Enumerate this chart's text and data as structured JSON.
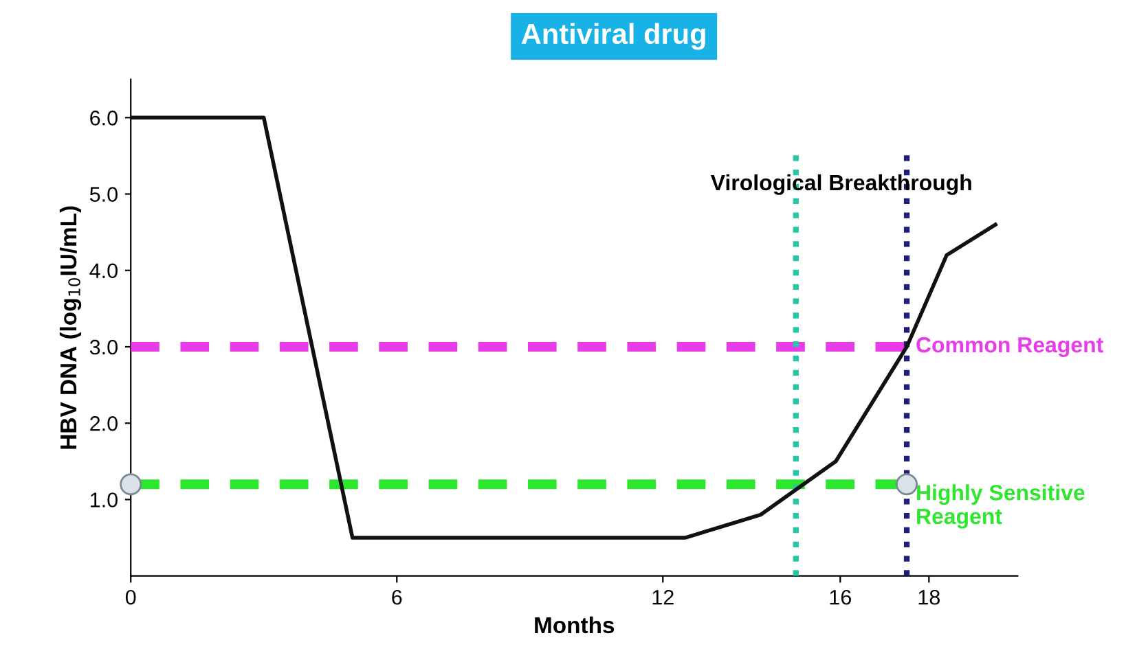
{
  "chart_data": {
    "type": "line",
    "title": "Antiviral drug",
    "xlabel": "Months",
    "ylabel": "HBV DNA (log$_{10}$IU/mL)",
    "xlim": [
      0,
      20
    ],
    "xticks": [
      0,
      6,
      12,
      16,
      18
    ],
    "ylim": [
      0,
      6.5
    ],
    "yticks": [
      {
        "value": 1,
        "label": "1.0"
      },
      {
        "value": 2,
        "label": "2.0"
      },
      {
        "value": 3,
        "label": "3.0"
      },
      {
        "value": 4,
        "label": "4.0"
      },
      {
        "value": 5,
        "label": "5.0"
      },
      {
        "value": 6,
        "label": "6.0"
      }
    ],
    "grid": false,
    "legend": false,
    "series": [
      {
        "color": "#111111",
        "marker": "none",
        "line_style": "solid",
        "x": [
          0,
          3,
          5,
          12.5,
          14.2,
          15.9,
          17.5,
          18.4,
          19.5
        ],
        "values": [
          6.0,
          6.0,
          0.5,
          0.5,
          0.8,
          1.5,
          3.0,
          4.2,
          4.6
        ]
      },
      {
        "type": "scatter",
        "color": "#d8e2e8",
        "marker": "circle",
        "x": [
          0,
          17.5
        ],
        "values": [
          1.2,
          1.2
        ]
      }
    ],
    "ref_lines": [
      {
        "axis": "y",
        "value": 3.0,
        "label": "Common Reagent",
        "color": "#e83ce8",
        "line_style": "dashed"
      },
      {
        "axis": "y",
        "value": 1.2,
        "label": "Highly Sensitive Reagent",
        "color": "#2ee62e",
        "line_style": "dashed"
      },
      {
        "axis": "x",
        "value": 15,
        "color": "#26c6a6",
        "line_style": "dotted"
      },
      {
        "axis": "x",
        "value": 17.5,
        "color": "#1f1f7a",
        "line_style": "dotted"
      }
    ],
    "annotations": [
      {
        "text": "Virological Breakthrough",
        "x": 19.5,
        "y": 4.6
      }
    ]
  }
}
